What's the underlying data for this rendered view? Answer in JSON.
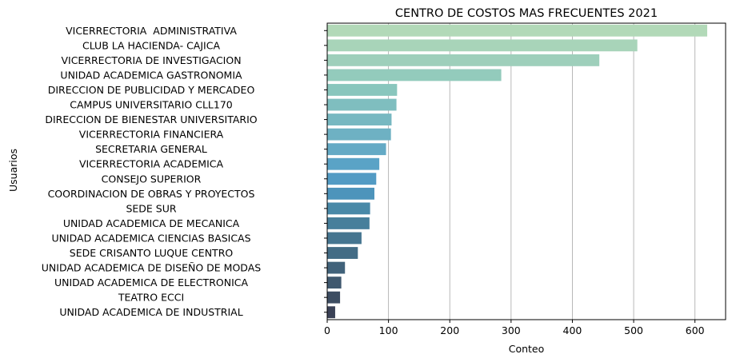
{
  "chart_data": {
    "type": "bar",
    "orientation": "horizontal",
    "title": "CENTRO DE COSTOS MAS FRECUENTES 2021",
    "xlabel": "Conteo",
    "ylabel": "Usuarios",
    "xlim": [
      0,
      650
    ],
    "xticks": [
      0,
      100,
      200,
      300,
      400,
      500,
      600
    ],
    "grid": "vertical lines on x ticks",
    "legend": "none",
    "palette": "light teal to dark slate gradient",
    "categories": [
      "VICERRECTORIA  ADMINISTRATIVA",
      "CLUB LA HACIENDA- CAJICA",
      "VICERRECTORIA DE INVESTIGACION",
      "UNIDAD ACADEMICA GASTRONOMIA",
      "DIRECCION DE PUBLICIDAD Y MERCADEO",
      "CAMPUS UNIVERSITARIO CLL170",
      "DIRECCION DE BIENESTAR UNIVERSITARIO",
      "VICERRECTORIA FINANCIERA",
      "SECRETARIA GENERAL",
      "VICERRECTORIA ACADEMICA",
      "CONSEJO SUPERIOR",
      "COORDINACION DE OBRAS Y PROYECTOS",
      "SEDE SUR",
      "UNIDAD ACADEMICA DE MECANICA",
      "UNIDAD ACADEMICA CIENCIAS BASICAS",
      "SEDE CRISANTO LUQUE CENTRO",
      "UNIDAD ACADEMICA DE DISEÑO DE MODAS",
      "UNIDAD ACADEMICA DE ELECTRONICA",
      "TEATRO ECCI",
      "UNIDAD ACADEMICA DE INDUSTRIAL"
    ],
    "values": [
      620,
      506,
      444,
      284,
      114,
      113,
      105,
      104,
      96,
      85,
      80,
      77,
      70,
      69,
      56,
      50,
      29,
      23,
      21,
      13
    ],
    "colors": [
      "#b2d9b8",
      "#a8d4b9",
      "#9ecfbb",
      "#93cbbc",
      "#89c6bd",
      "#7fbebf",
      "#77b8c1",
      "#6eb1c3",
      "#64aac5",
      "#5aa3c6",
      "#529bc4",
      "#4d94bb",
      "#4889a8",
      "#477f9b",
      "#457590",
      "#436c85",
      "#41627a",
      "#3f586e",
      "#3d4d62",
      "#3a4156"
    ]
  }
}
